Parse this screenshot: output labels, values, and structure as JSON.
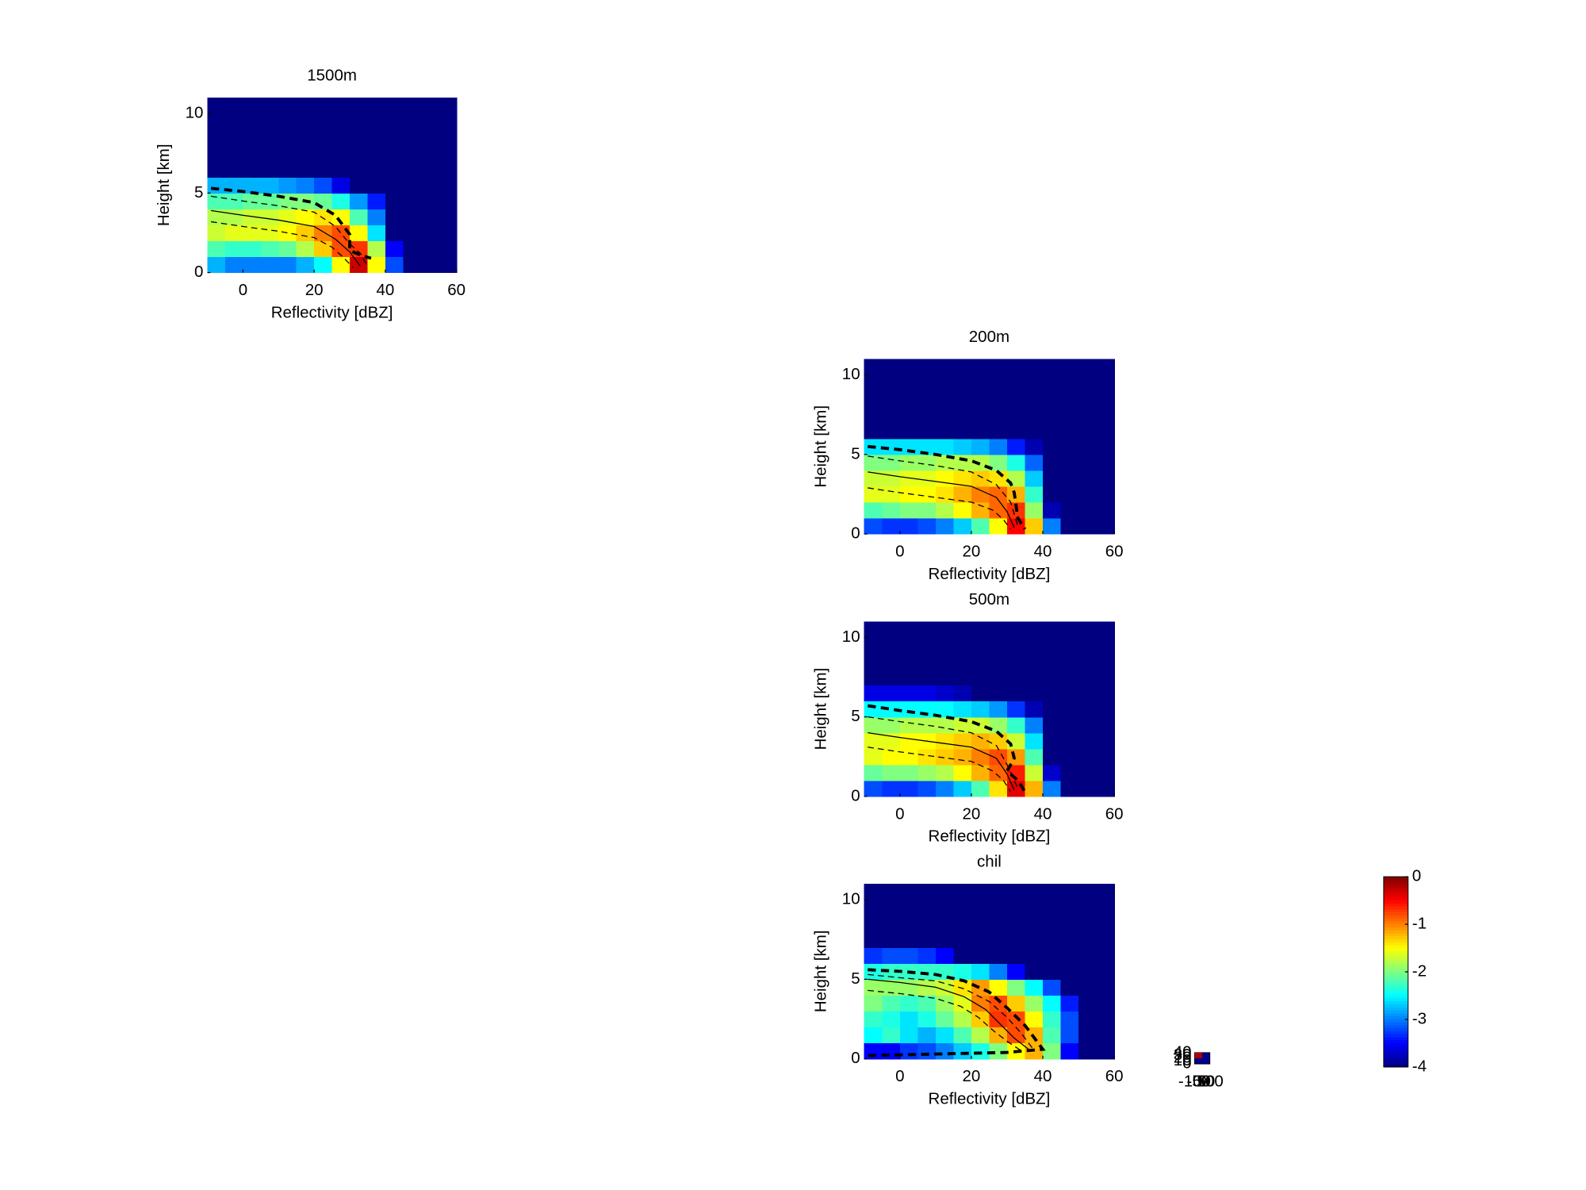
{
  "chart_data": [
    {
      "type": "heatmap",
      "title": "1500m",
      "xlabel": "Reflectivity [dBZ]",
      "ylabel": "Height [km]",
      "xlim": [
        -10,
        60
      ],
      "ylim": [
        0,
        11
      ],
      "xticks": [
        0,
        20,
        40,
        60
      ],
      "yticks": [
        0,
        5,
        10
      ],
      "x_bins": [
        -10,
        -5,
        0,
        5,
        10,
        15,
        20,
        25,
        30,
        35,
        40,
        45,
        50,
        55,
        60
      ],
      "y_bins": [
        0,
        1,
        2,
        3,
        4,
        5,
        6,
        7,
        8,
        9,
        10,
        11
      ],
      "z": [
        [
          -2.8,
          -3,
          -3,
          -3,
          -3,
          -2.8,
          -2.5,
          -1.5,
          -0.3,
          -1.5,
          -3.2,
          -4,
          -4,
          -4
        ],
        [
          -2.2,
          -2.3,
          -2.3,
          -2.2,
          -2.1,
          -1.8,
          -1.3,
          -0.8,
          -0.7,
          -1.8,
          -3.5,
          -4,
          -4,
          -4
        ],
        [
          -1.7,
          -1.6,
          -1.6,
          -1.6,
          -1.5,
          -1.3,
          -1,
          -0.8,
          -1.5,
          -2.6,
          -4,
          -4,
          -4,
          -4
        ],
        [
          -1.8,
          -1.8,
          -1.7,
          -1.7,
          -1.6,
          -1.5,
          -1.4,
          -1.5,
          -2.2,
          -3,
          -4,
          -4,
          -4,
          -4
        ],
        [
          -2.2,
          -2.2,
          -2.1,
          -2.1,
          -2,
          -2,
          -2.1,
          -2.4,
          -2.9,
          -3.4,
          -4,
          -4,
          -4,
          -4
        ],
        [
          -2.8,
          -2.8,
          -2.8,
          -2.8,
          -2.9,
          -3,
          -3.2,
          -3.6,
          -4,
          -4,
          -4,
          -4,
          -4,
          -4
        ],
        [
          -4,
          -4,
          -4,
          -4,
          -4,
          -4,
          -4,
          -4,
          -4,
          -4,
          -4,
          -4,
          -4,
          -4
        ],
        [
          -4,
          -4,
          -4,
          -4,
          -4,
          -4,
          -4,
          -4,
          -4,
          -4,
          -4,
          -4,
          -4,
          -4
        ],
        [
          -4,
          -4,
          -4,
          -4,
          -4,
          -4,
          -4,
          -4,
          -4,
          -4,
          -4,
          -4,
          -4,
          -4
        ],
        [
          -4,
          -4,
          -4,
          -4,
          -4,
          -4,
          -4,
          -4,
          -4,
          -4,
          -4,
          -4,
          -4,
          -4
        ],
        [
          -4,
          -4,
          -4,
          -4,
          -4,
          -4,
          -4,
          -4,
          -4,
          -4,
          -4,
          -4,
          -4,
          -4
        ]
      ],
      "lines": [
        {
          "style": "thick-dashed",
          "x": [
            -9,
            0,
            10,
            20,
            26,
            30,
            30,
            33,
            36
          ],
          "y": [
            5.3,
            5.1,
            4.8,
            4.4,
            3.6,
            2.4,
            1.4,
            1.1,
            0.9
          ]
        },
        {
          "style": "dashed",
          "x": [
            -9,
            0,
            10,
            20,
            26,
            30,
            33,
            35
          ],
          "y": [
            4.8,
            4.5,
            4.2,
            3.8,
            2.9,
            1.8,
            1.2,
            0.4
          ]
        },
        {
          "style": "solid",
          "x": [
            -9,
            0,
            10,
            20,
            26,
            30,
            33
          ],
          "y": [
            3.9,
            3.6,
            3.3,
            2.9,
            2.1,
            1.3,
            0.4
          ]
        },
        {
          "style": "dashed",
          "x": [
            -9,
            0,
            10,
            20,
            25,
            28,
            31
          ],
          "y": [
            3.2,
            2.9,
            2.6,
            2.2,
            1.6,
            1,
            0.3
          ]
        }
      ]
    },
    {
      "type": "heatmap",
      "title": "200m",
      "xlabel": "Reflectivity [dBZ]",
      "ylabel": "Height [km]",
      "xlim": [
        -10,
        60
      ],
      "ylim": [
        0,
        11
      ],
      "xticks": [
        0,
        20,
        40,
        60
      ],
      "yticks": [
        0,
        5,
        10
      ],
      "x_bins": [
        -10,
        -5,
        0,
        5,
        10,
        15,
        20,
        25,
        30,
        35,
        40,
        45,
        50,
        55,
        60
      ],
      "y_bins": [
        0,
        1,
        2,
        3,
        4,
        5,
        6,
        7,
        8,
        9,
        10,
        11
      ],
      "z": [
        [
          -3.2,
          -3.3,
          -3.3,
          -3.2,
          -3,
          -2.7,
          -2.2,
          -1.5,
          -0.5,
          -1.3,
          -3,
          -4,
          -4,
          -4
        ],
        [
          -2.2,
          -2.1,
          -2,
          -2,
          -1.8,
          -1.5,
          -1.2,
          -0.9,
          -0.7,
          -1.9,
          -3.8,
          -4,
          -4,
          -4
        ],
        [
          -1.6,
          -1.6,
          -1.5,
          -1.5,
          -1.4,
          -1.2,
          -1,
          -0.9,
          -1.2,
          -2.3,
          -4,
          -4,
          -4,
          -4
        ],
        [
          -1.7,
          -1.7,
          -1.6,
          -1.6,
          -1.5,
          -1.4,
          -1.3,
          -1.4,
          -1.8,
          -2.7,
          -4,
          -4,
          -4,
          -4
        ],
        [
          -2,
          -2,
          -1.9,
          -1.9,
          -1.8,
          -1.8,
          -1.8,
          -2,
          -2.4,
          -3.1,
          -4,
          -4,
          -4,
          -4
        ],
        [
          -2.6,
          -2.6,
          -2.6,
          -2.6,
          -2.6,
          -2.7,
          -2.8,
          -3,
          -3.4,
          -3.8,
          -4,
          -4,
          -4,
          -4
        ],
        [
          -4,
          -4,
          -4,
          -4,
          -4,
          -4,
          -4,
          -4,
          -4,
          -4,
          -4,
          -4,
          -4,
          -4
        ],
        [
          -4,
          -4,
          -4,
          -4,
          -4,
          -4,
          -4,
          -4,
          -4,
          -4,
          -4,
          -4,
          -4,
          -4
        ],
        [
          -4,
          -4,
          -4,
          -4,
          -4,
          -4,
          -4,
          -4,
          -4,
          -4,
          -4,
          -4,
          -4,
          -4
        ],
        [
          -4,
          -4,
          -4,
          -4,
          -4,
          -4,
          -4,
          -4,
          -4,
          -4,
          -4,
          -4,
          -4,
          -4
        ],
        [
          -4,
          -4,
          -4,
          -4,
          -4,
          -4,
          -4,
          -4,
          -4,
          -4,
          -4,
          -4,
          -4,
          -4
        ]
      ],
      "lines": [
        {
          "style": "thick-dashed",
          "x": [
            -9,
            0,
            10,
            20,
            27,
            31,
            32,
            33,
            35
          ],
          "y": [
            5.5,
            5.3,
            5,
            4.6,
            4,
            3.2,
            2.6,
            1,
            0.3
          ]
        },
        {
          "style": "dashed",
          "x": [
            -9,
            0,
            10,
            20,
            27,
            31,
            33
          ],
          "y": [
            4.9,
            4.6,
            4.3,
            3.9,
            3.1,
            2,
            0.5
          ]
        },
        {
          "style": "solid",
          "x": [
            -9,
            0,
            10,
            20,
            27,
            30,
            32
          ],
          "y": [
            3.9,
            3.6,
            3.3,
            3,
            2.3,
            1.4,
            0.4
          ]
        },
        {
          "style": "dashed",
          "x": [
            -9,
            0,
            10,
            20,
            26,
            29,
            31
          ],
          "y": [
            2.9,
            2.6,
            2.3,
            2,
            1.5,
            0.9,
            0.3
          ]
        }
      ]
    },
    {
      "type": "heatmap",
      "title": "500m",
      "xlabel": "Reflectivity [dBZ]",
      "ylabel": "Height [km]",
      "xlim": [
        -10,
        60
      ],
      "ylim": [
        0,
        11
      ],
      "xticks": [
        0,
        20,
        40,
        60
      ],
      "yticks": [
        0,
        5,
        10
      ],
      "x_bins": [
        -10,
        -5,
        0,
        5,
        10,
        15,
        20,
        25,
        30,
        35,
        40,
        45,
        50,
        55,
        60
      ],
      "y_bins": [
        0,
        1,
        2,
        3,
        4,
        5,
        6,
        7,
        8,
        9,
        10,
        11
      ],
      "z": [
        [
          -3.2,
          -3.3,
          -3.3,
          -3.2,
          -3,
          -2.7,
          -2.2,
          -1.4,
          -0.4,
          -1.2,
          -3,
          -4,
          -4,
          -4
        ],
        [
          -2.1,
          -2,
          -2,
          -1.9,
          -1.8,
          -1.5,
          -1.2,
          -0.9,
          -0.6,
          -1.7,
          -3.7,
          -4,
          -4,
          -4
        ],
        [
          -1.6,
          -1.5,
          -1.5,
          -1.4,
          -1.3,
          -1.2,
          -1,
          -0.8,
          -1.1,
          -2.2,
          -4,
          -4,
          -4,
          -4
        ],
        [
          -1.6,
          -1.6,
          -1.5,
          -1.5,
          -1.4,
          -1.3,
          -1.2,
          -1.3,
          -1.7,
          -2.6,
          -4,
          -4,
          -4,
          -4
        ],
        [
          -1.9,
          -1.9,
          -1.8,
          -1.8,
          -1.8,
          -1.7,
          -1.7,
          -1.9,
          -2.3,
          -3,
          -4,
          -4,
          -4,
          -4
        ],
        [
          -2.5,
          -2.5,
          -2.5,
          -2.5,
          -2.5,
          -2.6,
          -2.7,
          -2.9,
          -3.3,
          -3.8,
          -4,
          -4,
          -4,
          -4
        ],
        [
          -3.6,
          -3.6,
          -3.6,
          -3.6,
          -3.7,
          -3.8,
          -4,
          -4,
          -4,
          -4,
          -4,
          -4,
          -4,
          -4
        ],
        [
          -4,
          -4,
          -4,
          -4,
          -4,
          -4,
          -4,
          -4,
          -4,
          -4,
          -4,
          -4,
          -4,
          -4
        ],
        [
          -4,
          -4,
          -4,
          -4,
          -4,
          -4,
          -4,
          -4,
          -4,
          -4,
          -4,
          -4,
          -4,
          -4
        ],
        [
          -4,
          -4,
          -4,
          -4,
          -4,
          -4,
          -4,
          -4,
          -4,
          -4,
          -4,
          -4,
          -4,
          -4
        ],
        [
          -4,
          -4,
          -4,
          -4,
          -4,
          -4,
          -4,
          -4,
          -4,
          -4,
          -4,
          -4,
          -4,
          -4
        ]
      ],
      "lines": [
        {
          "style": "thick-dashed",
          "x": [
            -9,
            0,
            10,
            20,
            27,
            31,
            32,
            30,
            33,
            35
          ],
          "y": [
            5.7,
            5.4,
            5.1,
            4.7,
            4.1,
            3.3,
            2.4,
            1.6,
            1,
            0.3
          ]
        },
        {
          "style": "dashed",
          "x": [
            -9,
            0,
            10,
            20,
            27,
            30,
            33
          ],
          "y": [
            5,
            4.7,
            4.4,
            4,
            3.2,
            2,
            0.5
          ]
        },
        {
          "style": "solid",
          "x": [
            -9,
            0,
            10,
            20,
            27,
            30,
            32
          ],
          "y": [
            4,
            3.7,
            3.4,
            3.1,
            2.4,
            1.4,
            0.4
          ]
        },
        {
          "style": "dashed",
          "x": [
            -9,
            0,
            10,
            20,
            26,
            29,
            31
          ],
          "y": [
            3.1,
            2.8,
            2.5,
            2.2,
            1.6,
            1,
            0.3
          ]
        }
      ]
    },
    {
      "type": "heatmap",
      "title": "chil",
      "xlabel": "Reflectivity [dBZ]",
      "ylabel": "Height [km]",
      "xlim": [
        -10,
        60
      ],
      "ylim": [
        0,
        11
      ],
      "xticks": [
        0,
        20,
        40,
        60
      ],
      "yticks": [
        0,
        5,
        10
      ],
      "x_bins": [
        -10,
        -5,
        0,
        5,
        10,
        15,
        20,
        25,
        30,
        35,
        40,
        45,
        50,
        55,
        60
      ],
      "y_bins": [
        0,
        1,
        2,
        3,
        4,
        5,
        6,
        7,
        8,
        9,
        10,
        11
      ],
      "z": [
        [
          -3.5,
          -3.5,
          -3.3,
          -3.2,
          -3,
          -2.7,
          -2.4,
          -2,
          -1.5,
          -1.2,
          -2,
          -3.5,
          -4,
          -4
        ],
        [
          -2.5,
          -2.3,
          -2.6,
          -2.8,
          -2.6,
          -2.2,
          -1.8,
          -1.2,
          -0.8,
          -1.2,
          -2.2,
          -3.2,
          -4,
          -4
        ],
        [
          -2.3,
          -2.4,
          -2.6,
          -2.4,
          -2.1,
          -1.8,
          -1.3,
          -0.7,
          -0.8,
          -1.5,
          -2.3,
          -3.2,
          -4,
          -4
        ],
        [
          -2,
          -2.2,
          -2.3,
          -2.2,
          -1.9,
          -1.6,
          -1,
          -0.8,
          -1.3,
          -1.9,
          -2.5,
          -3.4,
          -4,
          -4
        ],
        [
          -1.9,
          -1.9,
          -1.9,
          -1.8,
          -1.7,
          -1.4,
          -1.1,
          -1.5,
          -2,
          -2.5,
          -3.2,
          -4,
          -4,
          -4
        ],
        [
          -2.4,
          -2.3,
          -2.3,
          -2.3,
          -2.3,
          -2.4,
          -2.6,
          -3,
          -3.5,
          -4,
          -4,
          -4,
          -4,
          -4
        ],
        [
          -3.3,
          -3.2,
          -3.2,
          -3.3,
          -3.5,
          -4,
          -4,
          -4,
          -4,
          -4,
          -4,
          -4,
          -4,
          -4
        ],
        [
          -4,
          -4,
          -4,
          -4,
          -4,
          -4,
          -4,
          -4,
          -4,
          -4,
          -4,
          -4,
          -4,
          -4
        ],
        [
          -4,
          -4,
          -4,
          -4,
          -4,
          -4,
          -4,
          -4,
          -4,
          -4,
          -4,
          -4,
          -4,
          -4
        ],
        [
          -4,
          -4,
          -4,
          -4,
          -4,
          -4,
          -4,
          -4,
          -4,
          -4,
          -4,
          -4,
          -4,
          -4
        ],
        [
          -4,
          -4,
          -4,
          -4,
          -4,
          -4,
          -4,
          -4,
          -4,
          -4,
          -4,
          -4,
          -4,
          -4
        ]
      ],
      "lines": [
        {
          "style": "thick-dashed",
          "x": [
            -9,
            0,
            10,
            18,
            25,
            30,
            35,
            38,
            40,
            30,
            10,
            -9
          ],
          "y": [
            5.6,
            5.5,
            5.3,
            4.9,
            4.2,
            3.2,
            2.1,
            1.2,
            0.6,
            0.4,
            0.3,
            0.2
          ]
        },
        {
          "style": "dashed",
          "x": [
            -9,
            0,
            10,
            18,
            25,
            30,
            34,
            37
          ],
          "y": [
            5.3,
            5.1,
            4.9,
            4.4,
            3.6,
            2.6,
            1.6,
            0.7
          ]
        },
        {
          "style": "solid",
          "x": [
            -9,
            0,
            10,
            18,
            24,
            28,
            32,
            36
          ],
          "y": [
            5,
            4.8,
            4.5,
            3.9,
            3.1,
            2.2,
            1.3,
            0.6
          ]
        },
        {
          "style": "dashed",
          "x": [
            -9,
            0,
            10,
            17,
            22,
            26,
            30,
            34
          ],
          "y": [
            4.3,
            4.1,
            3.8,
            3.3,
            2.6,
            1.8,
            1.1,
            0.5
          ]
        }
      ]
    },
    {
      "type": "colorbar",
      "ylim": [
        -4,
        0
      ],
      "yticks": [
        0,
        -1,
        -2,
        -3,
        -4
      ]
    },
    {
      "type": "axis",
      "xlim": [
        -100,
        100
      ],
      "ylim": [
        0,
        40
      ],
      "xticks": [
        -100,
        -50,
        0,
        50,
        100
      ],
      "yticks": [
        0,
        10,
        20,
        30,
        40
      ]
    }
  ]
}
